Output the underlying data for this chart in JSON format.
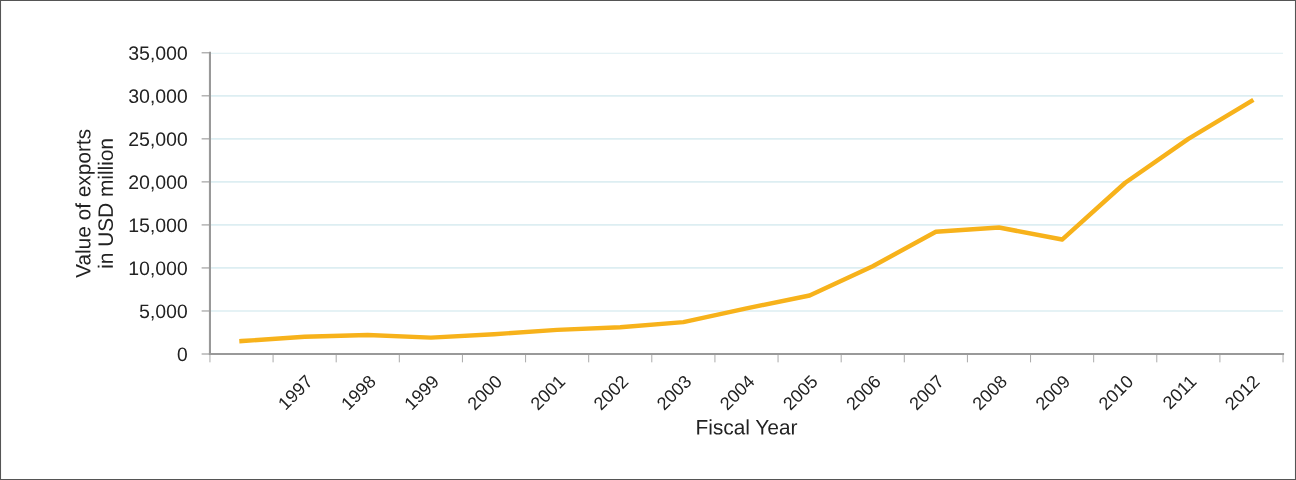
{
  "chart_data": {
    "type": "line",
    "xlabel": "Fiscal Year",
    "ylabel": "Value of exports\nin USD million",
    "categories": [
      null,
      "1997",
      "1998",
      "1999",
      "2000",
      "2001",
      "2002",
      "2003",
      "2004",
      "2005",
      "2006",
      "2007",
      "2008",
      "2009",
      "2010",
      "2011",
      "2012"
    ],
    "series": [
      {
        "color": "#f7b21b",
        "values": [
          1500,
          2000,
          2200,
          1900,
          2300,
          2800,
          3100,
          3700,
          5300,
          6800,
          10200,
          14200,
          14700,
          13300,
          19900,
          25000,
          29400
        ]
      }
    ],
    "ylim": [
      0,
      35000
    ],
    "yticks": [
      {
        "value": 0,
        "label": "0"
      },
      {
        "value": 5000,
        "label": "5,000"
      },
      {
        "value": 10000,
        "label": "10,000"
      },
      {
        "value": 15000,
        "label": "15,000"
      },
      {
        "value": 20000,
        "label": "20,000"
      },
      {
        "value": 25000,
        "label": "25,000"
      },
      {
        "value": 30000,
        "label": "30,000"
      },
      {
        "value": 35000,
        "label": "35,000"
      }
    ],
    "grid": "y",
    "marker": "none",
    "line_style": "solid"
  }
}
